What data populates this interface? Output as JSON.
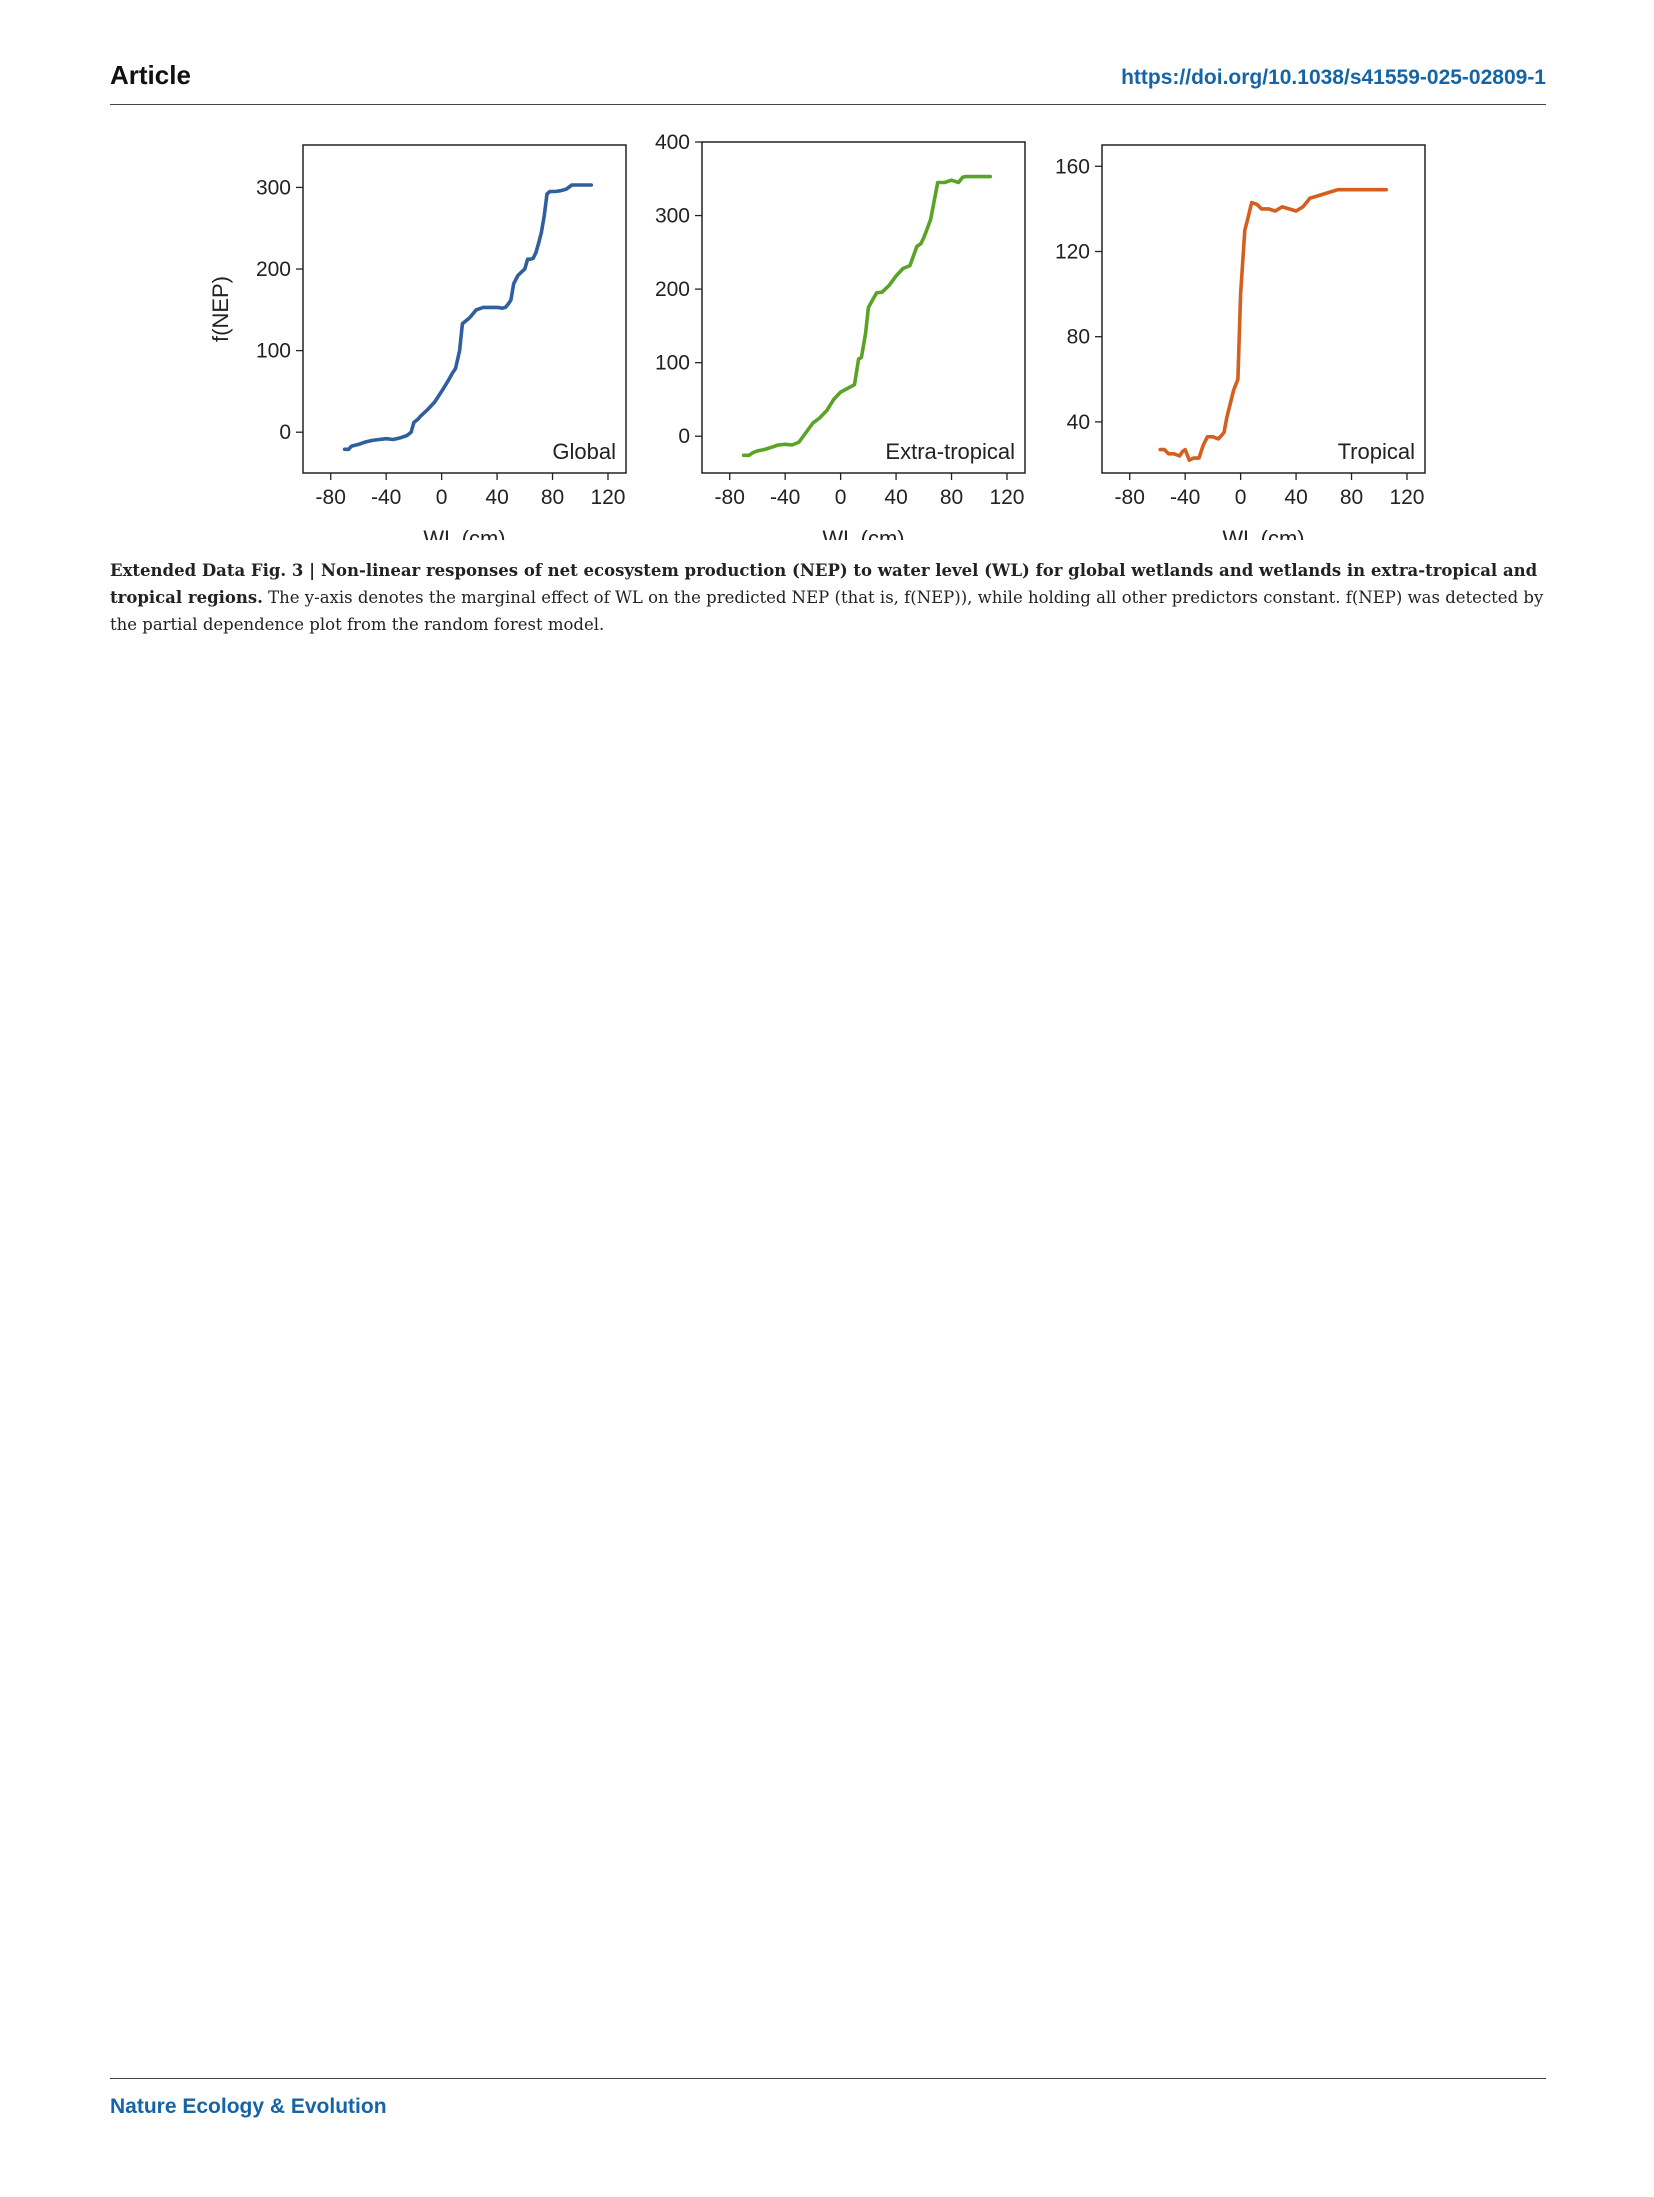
{
  "header": {
    "section": "Article",
    "doi": "https://doi.org/10.1038/s41559-025-02809-1"
  },
  "footer": {
    "journal": "Nature Ecology & Evolution"
  },
  "caption": {
    "lead": "Extended Data Fig. 3 | Non-linear responses of net ecosystem production (NEP) to water level (WL) for global wetlands and wetlands in extra-tropical and tropical regions.",
    "body": " The y-axis denotes the marginal effect of WL on the predicted NEP (that is, f(NEP)), while holding all other predictors constant. f(NEP) was detected by the partial dependence plot from the random forest model."
  },
  "chart_data": [
    {
      "type": "line",
      "panel_label": "Global",
      "color": "#2f5f9e",
      "xlabel": "WL (cm)",
      "ylabel": "f(NEP)",
      "xlim": [
        -100,
        133
      ],
      "ylim": [
        -50,
        352
      ],
      "xticks": [
        -80,
        -40,
        0,
        40,
        80,
        120
      ],
      "yticks": [
        0,
        100,
        200,
        300
      ],
      "x": [
        -70,
        -67,
        -65,
        -60,
        -55,
        -50,
        -45,
        -40,
        -35,
        -30,
        -25,
        -22,
        -20,
        -17,
        -15,
        -10,
        -5,
        0,
        5,
        8,
        10,
        13,
        15,
        20,
        25,
        30,
        35,
        40,
        44,
        46,
        48,
        50,
        52,
        55,
        58,
        60,
        62,
        64,
        66,
        68,
        70,
        72,
        74,
        76,
        78,
        82,
        86,
        90,
        94,
        98,
        102,
        106,
        108
      ],
      "y": [
        -21,
        -21,
        -17,
        -15,
        -12,
        -10,
        -9,
        -8,
        -9,
        -7,
        -4,
        0,
        12,
        16,
        20,
        28,
        37,
        50,
        64,
        73,
        78,
        100,
        133,
        140,
        150,
        153,
        153,
        153,
        152,
        153,
        157,
        162,
        182,
        192,
        197,
        200,
        212,
        212,
        213,
        220,
        232,
        245,
        265,
        292,
        295,
        295,
        296,
        298,
        303,
        303,
        303,
        303,
        303
      ]
    },
    {
      "type": "line",
      "panel_label": "Extra-tropical",
      "color": "#5aa325",
      "xlabel": "WL (cm)",
      "ylabel": "",
      "xlim": [
        -100,
        133
      ],
      "ylim": [
        -50,
        400
      ],
      "xticks": [
        -80,
        -40,
        0,
        40,
        80,
        120
      ],
      "yticks": [
        0,
        100,
        200,
        300,
        400
      ],
      "x": [
        -70,
        -66,
        -63,
        -60,
        -55,
        -50,
        -45,
        -40,
        -35,
        -30,
        -25,
        -20,
        -15,
        -10,
        -5,
        0,
        5,
        10,
        13,
        15,
        18,
        20,
        23,
        26,
        30,
        35,
        40,
        45,
        50,
        55,
        58,
        60,
        62,
        65,
        70,
        72,
        75,
        80,
        85,
        88,
        90,
        95,
        100,
        105,
        108
      ],
      "y": [
        -26,
        -26,
        -22,
        -20,
        -18,
        -15,
        -12,
        -11,
        -12,
        -8,
        5,
        18,
        25,
        35,
        50,
        60,
        65,
        70,
        105,
        107,
        140,
        175,
        185,
        195,
        196,
        205,
        218,
        228,
        232,
        258,
        262,
        270,
        280,
        295,
        345,
        345,
        345,
        348,
        345,
        352,
        353,
        353,
        353,
        353,
        353
      ]
    },
    {
      "type": "line",
      "panel_label": "Tropical",
      "color": "#d45f1e",
      "xlabel": "WL (cm)",
      "ylabel": "",
      "xlim": [
        -100,
        133
      ],
      "ylim": [
        16,
        170
      ],
      "xticks": [
        -80,
        -40,
        0,
        40,
        80,
        120
      ],
      "yticks": [
        40,
        80,
        120,
        160
      ],
      "x": [
        -58,
        -55,
        -52,
        -48,
        -44,
        -42,
        -40,
        -37,
        -34,
        -30,
        -27,
        -24,
        -20,
        -16,
        -12,
        -10,
        -5,
        -2,
        0,
        3,
        5,
        8,
        12,
        15,
        18,
        20,
        25,
        30,
        35,
        40,
        45,
        50,
        55,
        60,
        65,
        70,
        72,
        75,
        80,
        85,
        90,
        95,
        100,
        105
      ],
      "y": [
        27,
        27,
        25,
        25,
        24,
        26,
        27,
        22,
        23,
        23,
        29,
        33,
        33,
        32,
        35,
        42,
        55,
        60,
        100,
        130,
        135,
        143,
        142,
        140,
        140,
        140,
        139,
        141,
        140,
        139,
        141,
        145,
        146,
        147,
        148,
        149,
        149,
        149,
        149,
        149,
        149,
        149,
        149,
        149
      ]
    }
  ]
}
